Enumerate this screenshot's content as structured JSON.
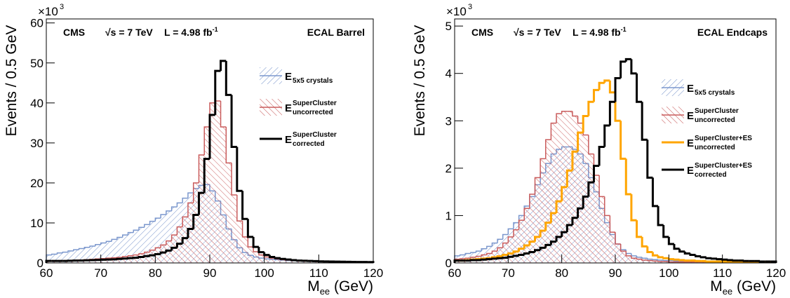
{
  "chart_data": [
    {
      "type": "histogram",
      "y_label": "Events / 0.5 GeV",
      "x_label": {
        "text": "M",
        "sub": "ee",
        "unit": " (GeV)"
      },
      "y_multiplier": {
        "base": "×10",
        "exponent": "3"
      },
      "annotations": [
        {
          "text": "CMS"
        },
        {
          "text": "√s = 7 TeV"
        },
        {
          "text": "L = 4.98 fb",
          "sup": "-1"
        },
        {
          "text": "ECAL Barrel"
        }
      ],
      "xlim": [
        60,
        120
      ],
      "ylim": [
        0,
        61
      ],
      "xticks": [
        60,
        70,
        80,
        90,
        100,
        110,
        120
      ],
      "yticks": [
        0,
        10,
        20,
        30,
        40,
        50,
        60
      ],
      "bins": [
        60,
        61,
        62,
        63,
        64,
        65,
        66,
        67,
        68,
        69,
        70,
        71,
        72,
        73,
        74,
        75,
        76,
        77,
        78,
        79,
        80,
        81,
        82,
        83,
        84,
        85,
        86,
        87,
        88,
        89,
        90,
        91,
        92,
        93,
        94,
        95,
        96,
        97,
        98,
        99,
        100,
        101,
        102,
        103,
        104,
        105,
        106,
        107,
        108,
        109,
        110,
        111,
        112,
        113,
        114,
        115,
        116,
        117,
        118,
        119,
        120
      ],
      "series": [
        {
          "name": "E",
          "name_sub": "5x5 crystals",
          "color": "#7b97cd",
          "hatch": true,
          "values": [
            2.0,
            2.2,
            2.5,
            2.7,
            3.0,
            3.3,
            3.6,
            3.9,
            4.2,
            4.6,
            5.0,
            5.4,
            5.9,
            6.4,
            7.0,
            7.6,
            8.2,
            8.9,
            9.6,
            10.4,
            11.2,
            12.1,
            13.0,
            14.0,
            15.0,
            16.2,
            17.5,
            18.6,
            19.4,
            19.6,
            18.0,
            15.5,
            12.0,
            8.5,
            5.8,
            3.8,
            2.6,
            1.9,
            1.5,
            1.2,
            1.0,
            0.9,
            0.8,
            0.7,
            0.6,
            0.55,
            0.5,
            0.45,
            0.4,
            0.38,
            0.35,
            0.32,
            0.3,
            0.28,
            0.26,
            0.24,
            0.22,
            0.2,
            0.2,
            0.18
          ]
        },
        {
          "name": "E",
          "name_sup": "SuperCluster",
          "name_sub": "uncorrected",
          "color": "#c95b5b",
          "hatch": true,
          "values": [
            0.5,
            0.5,
            0.55,
            0.6,
            0.65,
            0.7,
            0.75,
            0.8,
            0.9,
            1.0,
            1.1,
            1.2,
            1.3,
            1.4,
            1.6,
            1.8,
            2.0,
            2.3,
            2.7,
            3.2,
            3.8,
            4.5,
            5.5,
            7.0,
            9.0,
            11.5,
            15.0,
            20.0,
            27.0,
            34.0,
            40.0,
            40.5,
            34.0,
            25.0,
            17.0,
            10.5,
            6.5,
            4.0,
            2.8,
            2.0,
            1.5,
            1.2,
            1.0,
            0.8,
            0.7,
            0.6,
            0.5,
            0.45,
            0.4,
            0.35,
            0.3,
            0.28,
            0.26,
            0.24,
            0.22,
            0.2,
            0.2,
            0.18,
            0.17,
            0.16
          ]
        },
        {
          "name": "E",
          "name_sup": "SuperCluster",
          "name_sub": "corrected",
          "color": "#000000",
          "hatch": false,
          "values": [
            0.5,
            0.5,
            0.5,
            0.5,
            0.55,
            0.6,
            0.6,
            0.65,
            0.7,
            0.75,
            0.8,
            0.85,
            0.9,
            1.0,
            1.1,
            1.2,
            1.3,
            1.5,
            1.7,
            1.9,
            2.2,
            2.6,
            3.1,
            3.8,
            4.8,
            6.2,
            8.5,
            12.0,
            17.5,
            26.0,
            37.0,
            48.0,
            50.5,
            42.0,
            29.0,
            18.0,
            11.0,
            6.5,
            4.0,
            2.7,
            2.0,
            1.5,
            1.2,
            1.0,
            0.85,
            0.7,
            0.6,
            0.55,
            0.5,
            0.45,
            0.4,
            0.38,
            0.35,
            0.32,
            0.3,
            0.28,
            0.26,
            0.25,
            0.24,
            0.22
          ]
        }
      ]
    },
    {
      "type": "histogram",
      "y_label": "Events / 0.5 GeV",
      "x_label": {
        "text": "M",
        "sub": "ee",
        "unit": " (GeV)"
      },
      "y_multiplier": {
        "base": "×10",
        "exponent": "3"
      },
      "annotations": [
        {
          "text": "CMS"
        },
        {
          "text": "√s = 7 TeV"
        },
        {
          "text": "L = 4.98 fb",
          "sup": "-1"
        },
        {
          "text": "ECAL Endcaps"
        }
      ],
      "xlim": [
        60,
        120
      ],
      "ylim": [
        0,
        5.15
      ],
      "xticks": [
        60,
        70,
        80,
        90,
        100,
        110,
        120
      ],
      "yticks": [
        0,
        1,
        2,
        3,
        4,
        5
      ],
      "bins": [
        60,
        61,
        62,
        63,
        64,
        65,
        66,
        67,
        68,
        69,
        70,
        71,
        72,
        73,
        74,
        75,
        76,
        77,
        78,
        79,
        80,
        81,
        82,
        83,
        84,
        85,
        86,
        87,
        88,
        89,
        90,
        91,
        92,
        93,
        94,
        95,
        96,
        97,
        98,
        99,
        100,
        101,
        102,
        103,
        104,
        105,
        106,
        107,
        108,
        109,
        110,
        111,
        112,
        113,
        114,
        115,
        116,
        117,
        118,
        119,
        120
      ],
      "series": [
        {
          "name": "E",
          "name_sub": "5x5 crystals",
          "color": "#7b97cd",
          "hatch": true,
          "values": [
            0.15,
            0.17,
            0.2,
            0.22,
            0.25,
            0.3,
            0.35,
            0.42,
            0.5,
            0.6,
            0.72,
            0.85,
            1.0,
            1.2,
            1.4,
            1.65,
            1.9,
            2.1,
            2.3,
            2.4,
            2.45,
            2.45,
            2.4,
            2.3,
            2.1,
            1.8,
            1.5,
            1.15,
            0.85,
            0.6,
            0.4,
            0.28,
            0.2,
            0.15,
            0.12,
            0.1,
            0.08,
            0.07,
            0.06,
            0.05,
            0.05,
            0.04,
            0.04,
            0.04,
            0.03,
            0.03,
            0.03,
            0.03,
            0.02,
            0.02,
            0.02,
            0.02,
            0.02,
            0.02,
            0.02,
            0.02,
            0.02,
            0.02,
            0.02,
            0.02
          ]
        },
        {
          "name": "E",
          "name_sup": "SuperCluster",
          "name_sub": "uncorrected",
          "color": "#c95b5b",
          "hatch": true,
          "values": [
            0.08,
            0.09,
            0.1,
            0.12,
            0.14,
            0.17,
            0.2,
            0.25,
            0.32,
            0.42,
            0.55,
            0.7,
            0.9,
            1.15,
            1.45,
            1.8,
            2.2,
            2.6,
            2.95,
            3.15,
            3.2,
            3.2,
            3.1,
            2.95,
            2.7,
            2.3,
            1.85,
            1.4,
            1.0,
            0.65,
            0.4,
            0.25,
            0.15,
            0.1,
            0.08,
            0.06,
            0.05,
            0.04,
            0.03,
            0.03,
            0.02,
            0.02,
            0.02,
            0.02,
            0.02,
            0.02,
            0.02,
            0.02,
            0.02,
            0.02,
            0.02,
            0.02,
            0.02,
            0.02,
            0.02,
            0.02,
            0.02,
            0.02,
            0.02,
            0.02
          ]
        },
        {
          "name": "E",
          "name_sup": "SuperCluster+ES",
          "name_sub": "uncorrected",
          "color": "#ffa500",
          "hatch": false,
          "values": [
            0.05,
            0.05,
            0.06,
            0.07,
            0.08,
            0.09,
            0.1,
            0.12,
            0.14,
            0.17,
            0.2,
            0.24,
            0.3,
            0.37,
            0.45,
            0.55,
            0.68,
            0.85,
            1.05,
            1.3,
            1.6,
            1.95,
            2.35,
            2.75,
            3.1,
            3.4,
            3.65,
            3.8,
            3.85,
            3.6,
            3.0,
            2.2,
            1.45,
            0.9,
            0.55,
            0.35,
            0.23,
            0.16,
            0.12,
            0.1,
            0.08,
            0.07,
            0.06,
            0.05,
            0.05,
            0.04,
            0.04,
            0.03,
            0.03,
            0.03,
            0.03,
            0.02,
            0.02,
            0.02,
            0.02,
            0.02,
            0.02,
            0.02,
            0.02,
            0.02
          ]
        },
        {
          "name": "E",
          "name_sup": "SuperCluster+ES",
          "name_sub": "corrected",
          "color": "#000000",
          "hatch": false,
          "values": [
            0.05,
            0.05,
            0.05,
            0.06,
            0.06,
            0.07,
            0.08,
            0.09,
            0.1,
            0.11,
            0.13,
            0.15,
            0.17,
            0.2,
            0.23,
            0.27,
            0.32,
            0.38,
            0.45,
            0.55,
            0.65,
            0.8,
            0.95,
            1.15,
            1.4,
            1.7,
            2.05,
            2.45,
            2.9,
            3.4,
            3.9,
            4.25,
            4.3,
            4.0,
            3.4,
            2.6,
            1.8,
            1.2,
            0.8,
            0.55,
            0.4,
            0.3,
            0.24,
            0.2,
            0.17,
            0.14,
            0.12,
            0.1,
            0.09,
            0.08,
            0.07,
            0.06,
            0.05,
            0.05,
            0.04,
            0.04,
            0.04,
            0.03,
            0.03,
            0.03
          ]
        }
      ]
    }
  ]
}
